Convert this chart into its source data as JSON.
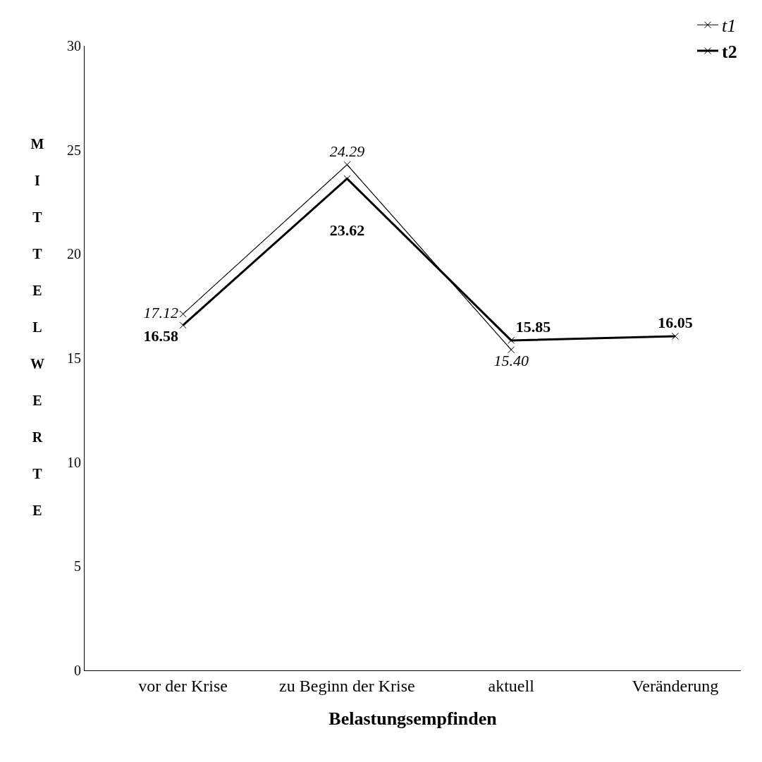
{
  "chart_data": {
    "type": "line",
    "xlabel": "Belastungsempfinden",
    "ylabel": "MITTELWERTE",
    "categories": [
      "vor der Krise",
      "zu Beginn der Krise",
      "aktuell",
      "Veränderung"
    ],
    "series": [
      {
        "name": "t1",
        "color": "#000000",
        "values": [
          17.12,
          24.29,
          15.4,
          null
        ],
        "value_labels": [
          "17.12",
          "24.29",
          "15.40",
          null
        ]
      },
      {
        "name": "t2",
        "color": "#000000",
        "values": [
          16.58,
          23.62,
          15.85,
          16.05
        ],
        "value_labels": [
          "16.58",
          "23.62",
          "15.85",
          "16.05"
        ]
      }
    ],
    "ylim": [
      0,
      30
    ],
    "yticks": [
      0,
      5,
      10,
      15,
      20,
      25,
      30
    ],
    "legend": "top right",
    "marker": "cross",
    "line_style": "solid"
  }
}
